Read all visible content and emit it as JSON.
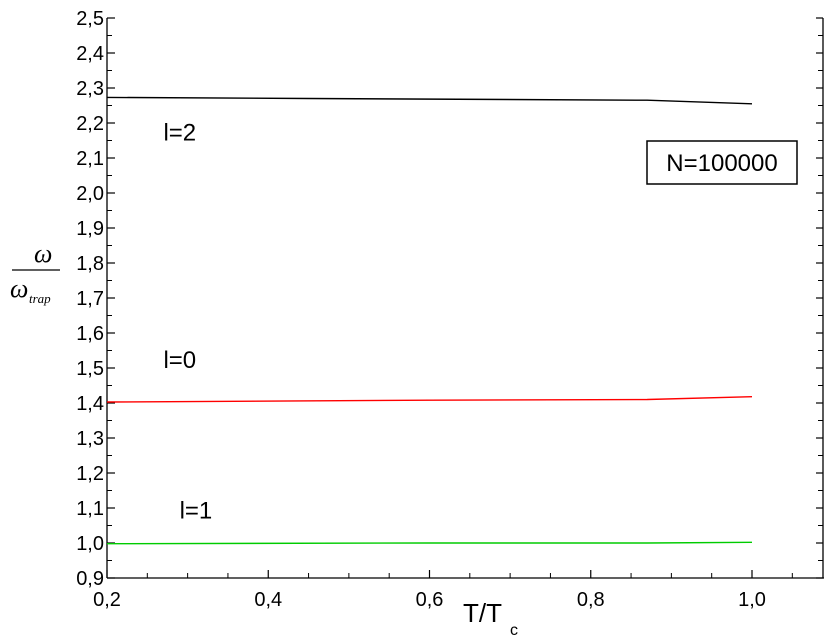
{
  "chart_data": {
    "type": "line",
    "xlabel_main": "T/T",
    "xlabel_sub": "c",
    "ylabel_numerator": "ω",
    "ylabel_denominator_main": "ω",
    "ylabel_denominator_sub": "trap",
    "xlim": [
      0.2,
      1.08
    ],
    "ylim": [
      0.9,
      2.5
    ],
    "xticks": [
      0.2,
      0.4,
      0.6,
      0.8,
      1.0
    ],
    "xtick_labels": [
      "0,2",
      "0,4",
      "0,6",
      "0,8",
      "1,0"
    ],
    "yticks": [
      0.9,
      1.0,
      1.1,
      1.2,
      1.3,
      1.4,
      1.5,
      1.6,
      1.7,
      1.8,
      1.9,
      2.0,
      2.1,
      2.2,
      2.3,
      2.4,
      2.5
    ],
    "ytick_labels": [
      "0,9",
      "1,0",
      "1,1",
      "1,2",
      "1,3",
      "1,4",
      "1,5",
      "1,6",
      "1,7",
      "1,8",
      "1,9",
      "2,0",
      "2,1",
      "2,2",
      "2,3",
      "2,4",
      "2,5"
    ],
    "grid": false,
    "annotation_box": "N=100000",
    "series": [
      {
        "name": "l=2",
        "color": "#000000",
        "x": [
          0.2,
          0.45,
          0.87,
          1.0
        ],
        "y": [
          2.273,
          2.27,
          2.265,
          2.255
        ]
      },
      {
        "name": "l=0",
        "color": "#ff0000",
        "x": [
          0.2,
          0.6,
          0.87,
          1.0
        ],
        "y": [
          1.403,
          1.408,
          1.41,
          1.418
        ]
      },
      {
        "name": "l=1",
        "color": "#00cc00",
        "x": [
          0.2,
          0.6,
          0.87,
          1.0
        ],
        "y": [
          0.998,
          1.0,
          1.0,
          1.002
        ]
      }
    ],
    "series_label_positions": [
      {
        "series": "l=2",
        "label": "l=2",
        "x": 0.27,
        "y": 2.15
      },
      {
        "series": "l=0",
        "label": "l=0",
        "x": 0.27,
        "y": 1.5
      },
      {
        "series": "l=1",
        "label": "l=1",
        "x": 0.29,
        "y": 1.07
      }
    ]
  }
}
